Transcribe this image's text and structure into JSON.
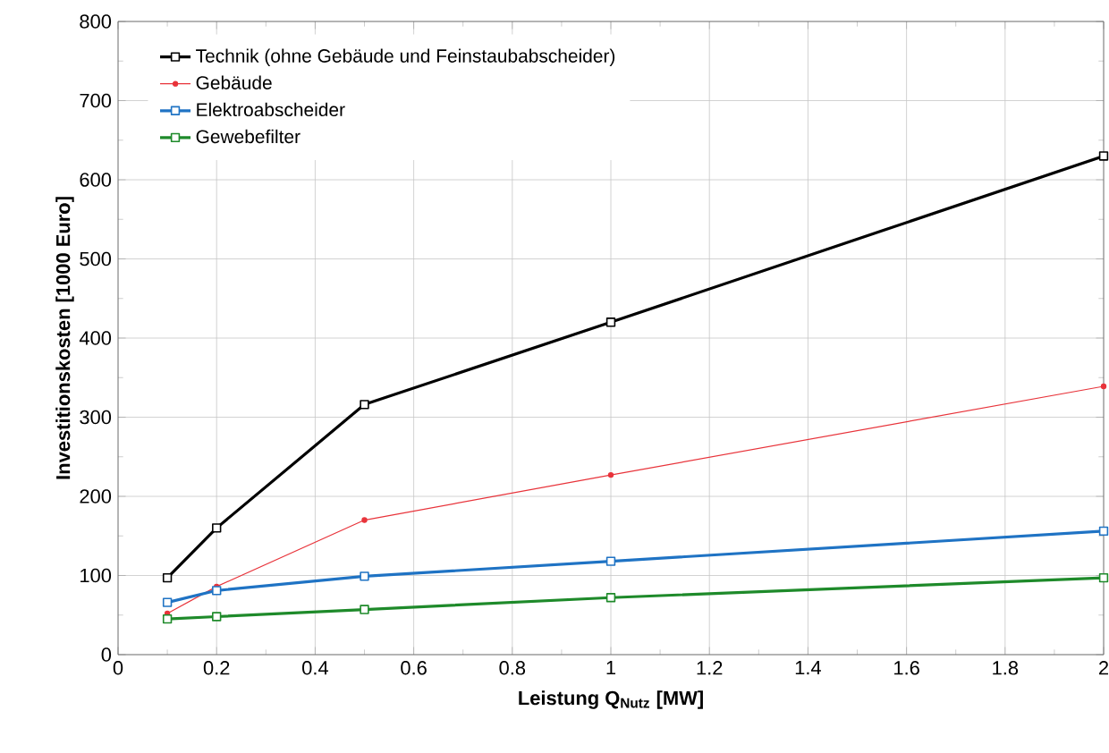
{
  "chart_data": {
    "type": "line",
    "xlabel": "Leistung Q$_{Nutz}$ [MW]",
    "ylabel": "Investitionskosten [1000 Euro]",
    "xlim": [
      0,
      2
    ],
    "ylim": [
      0,
      800
    ],
    "xticks": [
      0,
      0.2,
      0.4,
      0.6,
      0.8,
      1,
      1.2,
      1.4,
      1.6,
      1.8,
      2
    ],
    "yticks": [
      0,
      100,
      200,
      300,
      400,
      500,
      600,
      700,
      800
    ],
    "grid": true,
    "legend": "top left",
    "series": [
      {
        "name": "Technik (ohne Gebäude und Feinstaubabscheider)",
        "color": "#000000",
        "marker": "square",
        "x": [
          0.1,
          0.2,
          0.5,
          1,
          2
        ],
        "values": [
          97,
          160,
          316,
          420,
          630
        ]
      },
      {
        "name": "Gebäude",
        "color": "#e8333a",
        "marker": "circle",
        "x": [
          0.1,
          0.2,
          0.5,
          1,
          2
        ],
        "values": [
          52,
          86,
          170,
          227,
          339
        ]
      },
      {
        "name": "Elektroabscheider",
        "color": "#1f73c4",
        "marker": "square",
        "x": [
          0.1,
          0.2,
          0.5,
          1,
          2
        ],
        "values": [
          66,
          81,
          99,
          118,
          156
        ]
      },
      {
        "name": "Gewebefilter",
        "color": "#1e8a2a",
        "marker": "square",
        "x": [
          0.1,
          0.2,
          0.5,
          1,
          2
        ],
        "values": [
          45,
          48,
          57,
          72,
          97
        ]
      }
    ]
  }
}
